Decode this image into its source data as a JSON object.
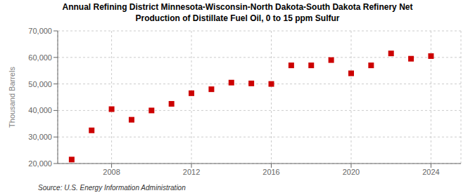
{
  "chart_data": {
    "type": "scatter",
    "title": "Annual Refining District Minnesota-Wisconsin-North Dakota-South Dakota Refinery Net\nProduction of Distillate Fuel Oil, 0 to 15 ppm Sulfur",
    "y_label": "Thousand Barrels",
    "annotations": [
      "Source: U.S. Energy Information Administration"
    ],
    "x": [
      2006,
      2007,
      2008,
      2009,
      2010,
      2011,
      2012,
      2013,
      2014,
      2015,
      2016,
      2017,
      2018,
      2019,
      2020,
      2021,
      2022,
      2023,
      2024
    ],
    "values": [
      21500,
      32500,
      40500,
      36500,
      40000,
      42500,
      46500,
      48000,
      50500,
      50200,
      50000,
      57000,
      57000,
      59000,
      54000,
      57000,
      61500,
      59500,
      60500
    ],
    "color": "#cc0000",
    "marker": "square",
    "xlim": [
      2005.3,
      2025.5
    ],
    "xticks": [
      2008,
      2012,
      2016,
      2020,
      2024
    ],
    "ylim": [
      20000,
      70000
    ],
    "yticks": [
      {
        "value": 20000,
        "label": "20,000"
      },
      {
        "value": 30000,
        "label": "30,000"
      },
      {
        "value": 40000,
        "label": "40,000"
      },
      {
        "value": 50000,
        "label": "50,000"
      },
      {
        "value": 60000,
        "label": "60,000"
      },
      {
        "value": 70000,
        "label": "70,000"
      }
    ],
    "grid": true
  }
}
